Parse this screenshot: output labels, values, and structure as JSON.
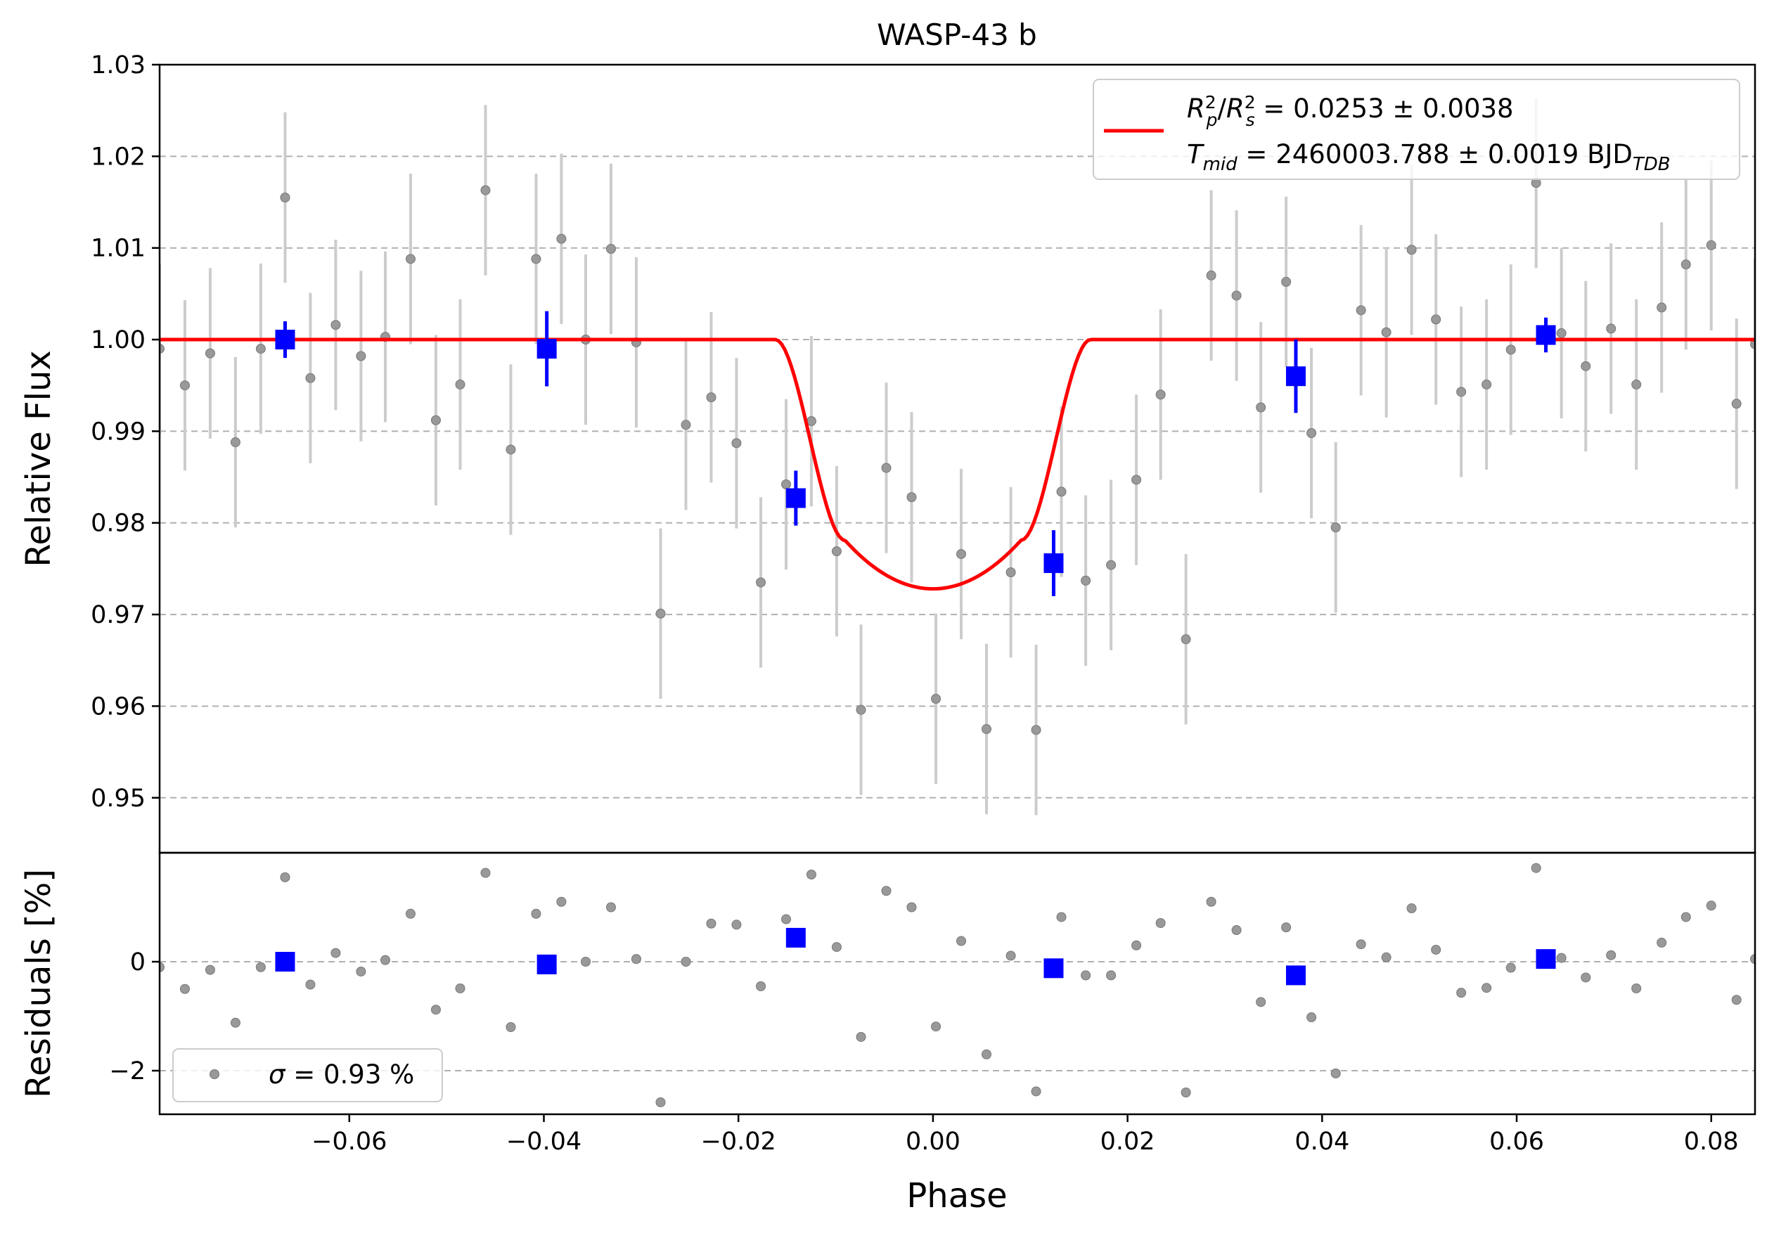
{
  "chart_data": {
    "type": "scatter",
    "title": "WASP-43 b",
    "xlabel": "Phase",
    "xlim": [
      -0.0795,
      0.0845
    ],
    "x_ticks": [
      -0.06,
      -0.04,
      -0.02,
      0.0,
      0.02,
      0.04,
      0.06,
      0.08
    ],
    "x_tick_labels": [
      "−0.06",
      "−0.04",
      "−0.02",
      "0.00",
      "0.02",
      "0.04",
      "0.06",
      "0.08"
    ],
    "grid": true,
    "colors": {
      "model": "#ff0000",
      "binned": "#0000ff",
      "raw": "#999999",
      "errorbar": "#cccccc",
      "grid": "#b0b0b0"
    },
    "panels": {
      "top": {
        "ylabel": "Relative Flux",
        "ylim": [
          0.944,
          1.03
        ],
        "y_ticks": [
          0.95,
          0.96,
          0.97,
          0.98,
          0.99,
          1.0,
          1.01,
          1.02,
          1.03
        ],
        "y_tick_labels": [
          "0.95",
          "0.96",
          "0.97",
          "0.98",
          "0.99",
          "1.00",
          "1.01",
          "1.02",
          "1.03"
        ],
        "legend": {
          "position": "upper right",
          "entries": [
            {
              "text": "R²ₚ/R²ₛ = 0.0253 ± 0.0038"
            },
            {
              "text": "T_mid = 2460003.788 ± 0.0019 BJD_TDB"
            }
          ]
        },
        "model": {
          "depth": 0.0272,
          "t14": 0.0324,
          "t23": 0.0181,
          "ingress_depth": 0.0219
        },
        "raw": {
          "x": [
            -0.0795,
            -0.0769,
            -0.0743,
            -0.0717,
            -0.0691,
            -0.0666,
            -0.064,
            -0.0614,
            -0.0588,
            -0.0563,
            -0.0537,
            -0.0511,
            -0.0486,
            -0.046,
            -0.0434,
            -0.0408,
            -0.0382,
            -0.0357,
            -0.0331,
            -0.0305,
            -0.028,
            -0.0254,
            -0.0228,
            -0.0202,
            -0.0177,
            -0.0151,
            -0.0125,
            -0.0099,
            -0.0074,
            -0.0048,
            -0.0022,
            0.0003,
            0.0029,
            0.0055,
            0.008,
            0.0106,
            0.0132,
            0.0157,
            0.0183,
            0.0209,
            0.0234,
            0.026,
            0.0286,
            0.0312,
            0.0337,
            0.0363,
            0.0389,
            0.0414,
            0.044,
            0.0466,
            0.0492,
            0.0517,
            0.0543,
            0.0569,
            0.0594,
            0.062,
            0.0646,
            0.0671,
            0.0697,
            0.0723,
            0.0749,
            0.0774,
            0.08,
            0.0826,
            0.0845
          ],
          "y": [
            0.999,
            0.995,
            0.9985,
            0.9888,
            0.999,
            1.0155,
            0.9958,
            1.0016,
            0.9982,
            1.0003,
            1.0088,
            0.9912,
            0.9951,
            1.0163,
            0.988,
            1.0088,
            1.011,
            1.0,
            1.0099,
            0.9997,
            0.9701,
            0.9907,
            0.9937,
            0.9887,
            0.9735,
            0.9842,
            0.9911,
            0.9769,
            0.9596,
            0.986,
            0.9828,
            0.9608,
            0.9766,
            0.9575,
            0.9746,
            0.9574,
            0.9834,
            0.9737,
            0.9754,
            0.9847,
            0.994,
            0.9673,
            1.007,
            1.0048,
            0.9926,
            1.0063,
            0.9898,
            0.9795,
            1.0032,
            1.0008,
            1.0098,
            1.0022,
            0.9943,
            0.9951,
            0.9989,
            1.0171,
            1.0007,
            0.9971,
            1.0012,
            0.9951,
            1.0035,
            1.0082,
            1.0103,
            0.993,
            0.9995
          ],
          "err": [
            0.0093,
            0.0093,
            0.0093,
            0.0093,
            0.0093,
            0.0093,
            0.0093,
            0.0093,
            0.0093,
            0.0093,
            0.0093,
            0.0093,
            0.0093,
            0.0093,
            0.0093,
            0.0093,
            0.0093,
            0.0093,
            0.0093,
            0.0093,
            0.0093,
            0.0093,
            0.0093,
            0.0093,
            0.0093,
            0.0093,
            0.0093,
            0.0093,
            0.0093,
            0.0093,
            0.0093,
            0.0093,
            0.0093,
            0.0093,
            0.0093,
            0.0093,
            0.0093,
            0.0093,
            0.0093,
            0.0093,
            0.0093,
            0.0093,
            0.0093,
            0.0093,
            0.0093,
            0.0093,
            0.0093,
            0.0093,
            0.0093,
            0.0093,
            0.0093,
            0.0093,
            0.0093,
            0.0093,
            0.0093,
            0.0093,
            0.0093,
            0.0093,
            0.0093,
            0.0093,
            0.0093,
            0.0093,
            0.0093,
            0.0093,
            0.0093
          ]
        },
        "binned": {
          "x": [
            -0.0666,
            -0.0397,
            -0.0141,
            0.0124,
            0.0373,
            0.063
          ],
          "y": [
            1.0,
            0.999,
            0.9827,
            0.9756,
            0.996,
            1.0005
          ],
          "err": [
            0.002,
            0.0041,
            0.003,
            0.0036,
            0.004,
            0.0019
          ]
        }
      },
      "bottom": {
        "ylabel": "Residuals [%]",
        "ylim": [
          -2.8,
          2.0
        ],
        "y_ticks": [
          -2,
          0
        ],
        "y_tick_labels": [
          "−2",
          "0"
        ],
        "legend": {
          "position": "lower left",
          "entries": [
            {
              "text": "σ = 0.93 %"
            }
          ]
        },
        "raw_y": [
          -0.1,
          -0.5,
          -0.15,
          -1.12,
          -0.1,
          1.55,
          -0.42,
          0.16,
          -0.18,
          0.03,
          0.88,
          -0.88,
          -0.49,
          1.63,
          -1.2,
          0.88,
          1.1,
          0.0,
          1.0,
          0.05,
          -2.58,
          0.0,
          0.7,
          0.68,
          -0.45,
          0.78,
          1.6,
          0.27,
          -1.38,
          1.3,
          1.0,
          -1.19,
          0.38,
          -1.7,
          0.11,
          -2.38,
          0.82,
          -0.25,
          -0.25,
          0.3,
          0.71,
          -2.4,
          1.1,
          0.58,
          -0.74,
          0.63,
          -1.02,
          -2.05,
          0.32,
          0.08,
          0.98,
          0.22,
          -0.57,
          -0.48,
          -0.11,
          1.72,
          0.07,
          -0.29,
          0.12,
          -0.49,
          0.35,
          0.82,
          1.03,
          -0.7,
          0.05
        ],
        "binned_y": [
          0.0,
          -0.05,
          0.44,
          -0.12,
          -0.25,
          0.05
        ]
      }
    }
  }
}
